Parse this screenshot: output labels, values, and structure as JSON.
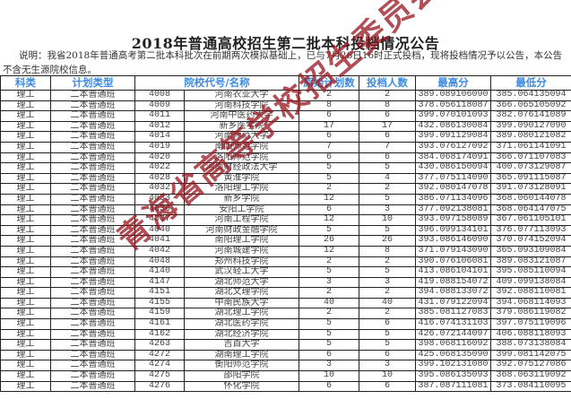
{
  "title": "2018年普通高校招生第二批本科投档情况公告",
  "description": "说明：我省2018年普通高考第二批本科批次在前期两次模拟基础上，已与7月26日16时正式投档，现将投档情况予以公告，本公告不含无生源院校信息。",
  "watermark": "青海省高等学校招生委员会办公室",
  "colors": {
    "header_text": "#3d8be0",
    "watermark": "#961420"
  },
  "table": {
    "headers": [
      "科类",
      "计划类型",
      "院校代号/名称",
      "原始计划数",
      "投档人数",
      "最高分",
      "最低分"
    ],
    "rows": [
      [
        "理工",
        "二本普通班",
        "4008",
        "河南农业大学",
        "2",
        "2",
        "389.089106090",
        "385.064135094"
      ],
      [
        "理工",
        "二本普通班",
        "4009",
        "河南科技学院",
        "8",
        "8",
        "378.056118087",
        "366.065105092"
      ],
      [
        "理工",
        "二本普通班",
        "4011",
        "河南中医药大学",
        "6",
        "6",
        "399.070101093",
        "382.076141089"
      ],
      [
        "理工",
        "二本普通班",
        "4012",
        "新乡医学院",
        "17",
        "17",
        "432.086130084",
        "399.090127090"
      ],
      [
        "理工",
        "二本普通班",
        "4014",
        "河南师范大学",
        "6",
        "6",
        "399.091129084",
        "389.080121082"
      ],
      [
        "理工",
        "二本普通班",
        "4019",
        "南阳师范学院",
        "7",
        "7",
        "393.076127092",
        "371.061141091"
      ],
      [
        "理工",
        "二本普通班",
        "4020",
        "洛阳师范学院",
        "6",
        "6",
        "384.068174091",
        "366.071107083"
      ],
      [
        "理工",
        "二本普通班",
        "4022",
        "河南财经政法大学",
        "5",
        "5",
        "430.086150094",
        "400.073129087"
      ],
      [
        "理工",
        "二本普通班",
        "4028",
        "黄淮学院",
        "5",
        "4",
        "377.075114090",
        "365.091115087"
      ],
      [
        "理工",
        "二本普通班",
        "4032",
        "洛阳理工学院",
        "2",
        "2",
        "392.080147078",
        "391.073128091"
      ],
      [
        "理工",
        "二本普通班",
        "4033",
        "新乡学院",
        "12",
        "5",
        "386.071134096",
        "368.060144078"
      ],
      [
        "理工",
        "二本普通班",
        "4036",
        "安阳工学院",
        "6",
        "3",
        "377.092138081",
        "368.064147075"
      ],
      [
        "理工",
        "二本普通班",
        "4037",
        "河南工程学院",
        "12",
        "10",
        "393.097158089",
        "367.061105101"
      ],
      [
        "理工",
        "二本普通班",
        "4040",
        "河南财政金融学院",
        "5",
        "5",
        "396.099134101",
        "376.077113093"
      ],
      [
        "理工",
        "二本普通班",
        "4041",
        "南阳理工学院",
        "26",
        "26",
        "393.086146090",
        "370.074152094"
      ],
      [
        "理工",
        "二本普通班",
        "4042",
        "河南城建学院",
        "12",
        "8",
        "371.079143090",
        "365.093109084"
      ],
      [
        "理工",
        "二本普通班",
        "4048",
        "郑州科技学院",
        "2",
        "2",
        "390.076106081",
        "389.083121087"
      ],
      [
        "理工",
        "二本普通班",
        "4140",
        "武汉轻工大学",
        "5",
        "5",
        "413.086104101",
        "395.085110094"
      ],
      [
        "理工",
        "二本普通班",
        "4147",
        "湖北师范大学",
        "3",
        "3",
        "419.088154072",
        "409.099138084"
      ],
      [
        "理工",
        "二本普通班",
        "4151",
        "湖北文理学院",
        "2",
        "2",
        "394.088133072",
        "392.088110081"
      ],
      [
        "理工",
        "二本普通班",
        "4155",
        "中南民族大学",
        "40",
        "40",
        "431.079122094",
        "394.068114093"
      ],
      [
        "理工",
        "二本普通班",
        "4159",
        "湖北理工学院",
        "2",
        "2",
        "385.081127083",
        "379.086119082"
      ],
      [
        "理工",
        "二本普通班",
        "4161",
        "湖北医药学院",
        "5",
        "6",
        "416.074131103",
        "397.075119096"
      ],
      [
        "理工",
        "二本普通班",
        "4162",
        "湖北经济学院",
        "5",
        "5",
        "426.072144097",
        "406.088118093"
      ],
      [
        "理工",
        "二本普通班",
        "4263",
        "吉首大学",
        "5",
        "5",
        "398.068116092",
        "388.073138084"
      ],
      [
        "理工",
        "二本普通班",
        "4272",
        "湖南理工学院",
        "6",
        "6",
        "425.068135090",
        "399.081142075"
      ],
      [
        "理工",
        "二本普通班",
        "4274",
        "衡阳师范学院",
        "3",
        "3",
        "399.102131080",
        "392.075127086"
      ],
      [
        "理工",
        "二本普通班",
        "4275",
        "邵阳学院",
        "10",
        "10",
        "395.086135093",
        "368.063119092"
      ],
      [
        "理工",
        "二本普通班",
        "4276",
        "怀化学院",
        "6",
        "6",
        "387.087111081",
        "373.084110095"
      ]
    ]
  }
}
